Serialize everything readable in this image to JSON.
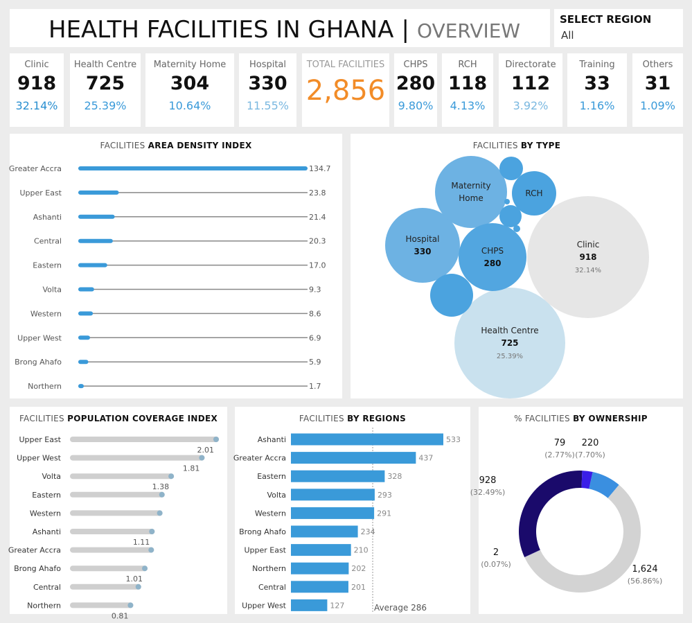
{
  "header": {
    "title": "HEALTH FACILITIES IN GHANA",
    "separator": "|",
    "subtitle": "OVERVIEW",
    "filter_label": "SELECT REGION",
    "filter_value": "All"
  },
  "colors": {
    "accent_blue": "#3a9ad9",
    "orange": "#f28c28",
    "grey_bar": "#d3d3d3",
    "navy": "#1a0a6b",
    "violet": "#3a1ee8"
  },
  "kpis": [
    {
      "label": "Clinic",
      "value": "918",
      "pct": "32.14%",
      "pct_color": "#2a8fd0"
    },
    {
      "label": "Health Centre",
      "value": "725",
      "pct": "25.39%",
      "pct_color": "#3a9ad9"
    },
    {
      "label": "Maternity Home",
      "value": "304",
      "pct": "10.64%",
      "pct_color": "#3a9ad9"
    },
    {
      "label": "Hospital",
      "value": "330",
      "pct": "11.55%",
      "pct_color": "#7ab8e0"
    },
    {
      "label": "TOTAL FACILITIES",
      "value": "2,856",
      "pct": "",
      "pct_color": "#f28c28"
    },
    {
      "label": "CHPS",
      "value": "280",
      "pct": "9.80%",
      "pct_color": "#3a9ad9"
    },
    {
      "label": "RCH",
      "value": "118",
      "pct": "4.13%",
      "pct_color": "#3a9ad9"
    },
    {
      "label": "Directorate",
      "value": "112",
      "pct": "3.92%",
      "pct_color": "#7ab8e0"
    },
    {
      "label": "Training",
      "value": "33",
      "pct": "1.16%",
      "pct_color": "#3a9ad9"
    },
    {
      "label": "Others",
      "value": "31",
      "pct": "1.09%",
      "pct_color": "#3a9ad9"
    }
  ],
  "chart_data": [
    {
      "type": "bar",
      "title_prefix": "FACILITIES",
      "title_bold": "AREA DENSITY INDEX",
      "categories": [
        "Greater Accra",
        "Upper East",
        "Ashanti",
        "Central",
        "Eastern",
        "Volta",
        "Western",
        "Upper West",
        "Brong Ahafo",
        "Northern"
      ],
      "values": [
        134.7,
        23.8,
        21.4,
        20.3,
        17.0,
        9.3,
        8.6,
        6.9,
        5.9,
        1.7
      ],
      "value_labels": [
        "134.7",
        "23.8",
        "21.4",
        "20.3",
        "17.0",
        "9.3",
        "8.6",
        "6.9",
        "5.9",
        "1.7"
      ],
      "xlim": [
        0,
        134.7
      ]
    },
    {
      "type": "scatter",
      "subtype": "packed-bubble",
      "title_prefix": "FACILITIES",
      "title_bold": "BY TYPE",
      "bubbles": [
        {
          "name": "Clinic",
          "value": 918,
          "label_value": "918",
          "pct": "32.14%"
        },
        {
          "name": "Health Centre",
          "value": 725,
          "label_value": "725",
          "pct": "25.39%"
        },
        {
          "name": "Hospital",
          "value": 330,
          "label_value": "330",
          "pct": ""
        },
        {
          "name": "Maternity Home",
          "value": 304,
          "label_value": "",
          "pct": ""
        },
        {
          "name": "CHPS",
          "value": 280,
          "label_value": "280",
          "pct": ""
        },
        {
          "name": "",
          "value": 118,
          "label_value": "",
          "pct": ""
        },
        {
          "name": "RCH",
          "value": 118,
          "label_value": "",
          "pct": ""
        },
        {
          "name": "",
          "value": 33,
          "label_value": "",
          "pct": ""
        },
        {
          "name": "",
          "value": 31,
          "label_value": "",
          "pct": ""
        },
        {
          "name": "",
          "value": 3,
          "label_value": "",
          "pct": ""
        },
        {
          "name": "",
          "value": 2,
          "label_value": "",
          "pct": ""
        }
      ]
    },
    {
      "type": "bar",
      "title_prefix": "FACILITIES",
      "title_bold": "POPULATION COVERAGE INDEX",
      "categories": [
        "Upper East",
        "Upper West",
        "Volta",
        "Eastern",
        "Western",
        "Ashanti",
        "Greater Accra",
        "Brong Ahafo",
        "Central",
        "Northern"
      ],
      "values": [
        2.01,
        1.81,
        1.38,
        1.25,
        1.22,
        1.11,
        1.1,
        1.01,
        0.92,
        0.81
      ],
      "value_labels": [
        "2.01",
        "1.81",
        "1.38",
        "",
        "",
        "1.11",
        "",
        "1.01",
        "",
        "0.81"
      ],
      "xlim": [
        0,
        2.01
      ]
    },
    {
      "type": "bar",
      "title_prefix": "FACILITIES",
      "title_bold": "BY REGIONS",
      "categories": [
        "Ashanti",
        "Greater Accra",
        "Eastern",
        "Volta",
        "Western",
        "Brong Ahafo",
        "Upper East",
        "Northern",
        "Central",
        "Upper West"
      ],
      "values": [
        533,
        437,
        328,
        293,
        291,
        234,
        210,
        202,
        201,
        127
      ],
      "value_labels": [
        "533",
        "437",
        "328",
        "293",
        "291",
        "234",
        "210",
        "202",
        "201",
        "127"
      ],
      "reference_line": {
        "label": "Average 286",
        "value": 286
      },
      "xlim": [
        0,
        533
      ]
    },
    {
      "type": "pie",
      "subtype": "donut",
      "title_prefix": "% FACILITIES",
      "title_bold": "BY OWNERSHIP",
      "slices": [
        {
          "value": 1624,
          "label": "1,624",
          "pct": "(56.86%)",
          "color": "#d3d3d3"
        },
        {
          "value": 2,
          "label": "2",
          "pct": "(0.07%)",
          "color": "#7a6fcf"
        },
        {
          "value": 928,
          "label": "928",
          "pct": "(32.49%)",
          "color": "#1a0a6b"
        },
        {
          "value": 79,
          "label": "79",
          "pct": "(2.77%)",
          "color": "#3a1ee8"
        },
        {
          "value": 220,
          "label": "220",
          "pct": "(7.70%)",
          "color": "#3a8fe0"
        }
      ]
    }
  ]
}
